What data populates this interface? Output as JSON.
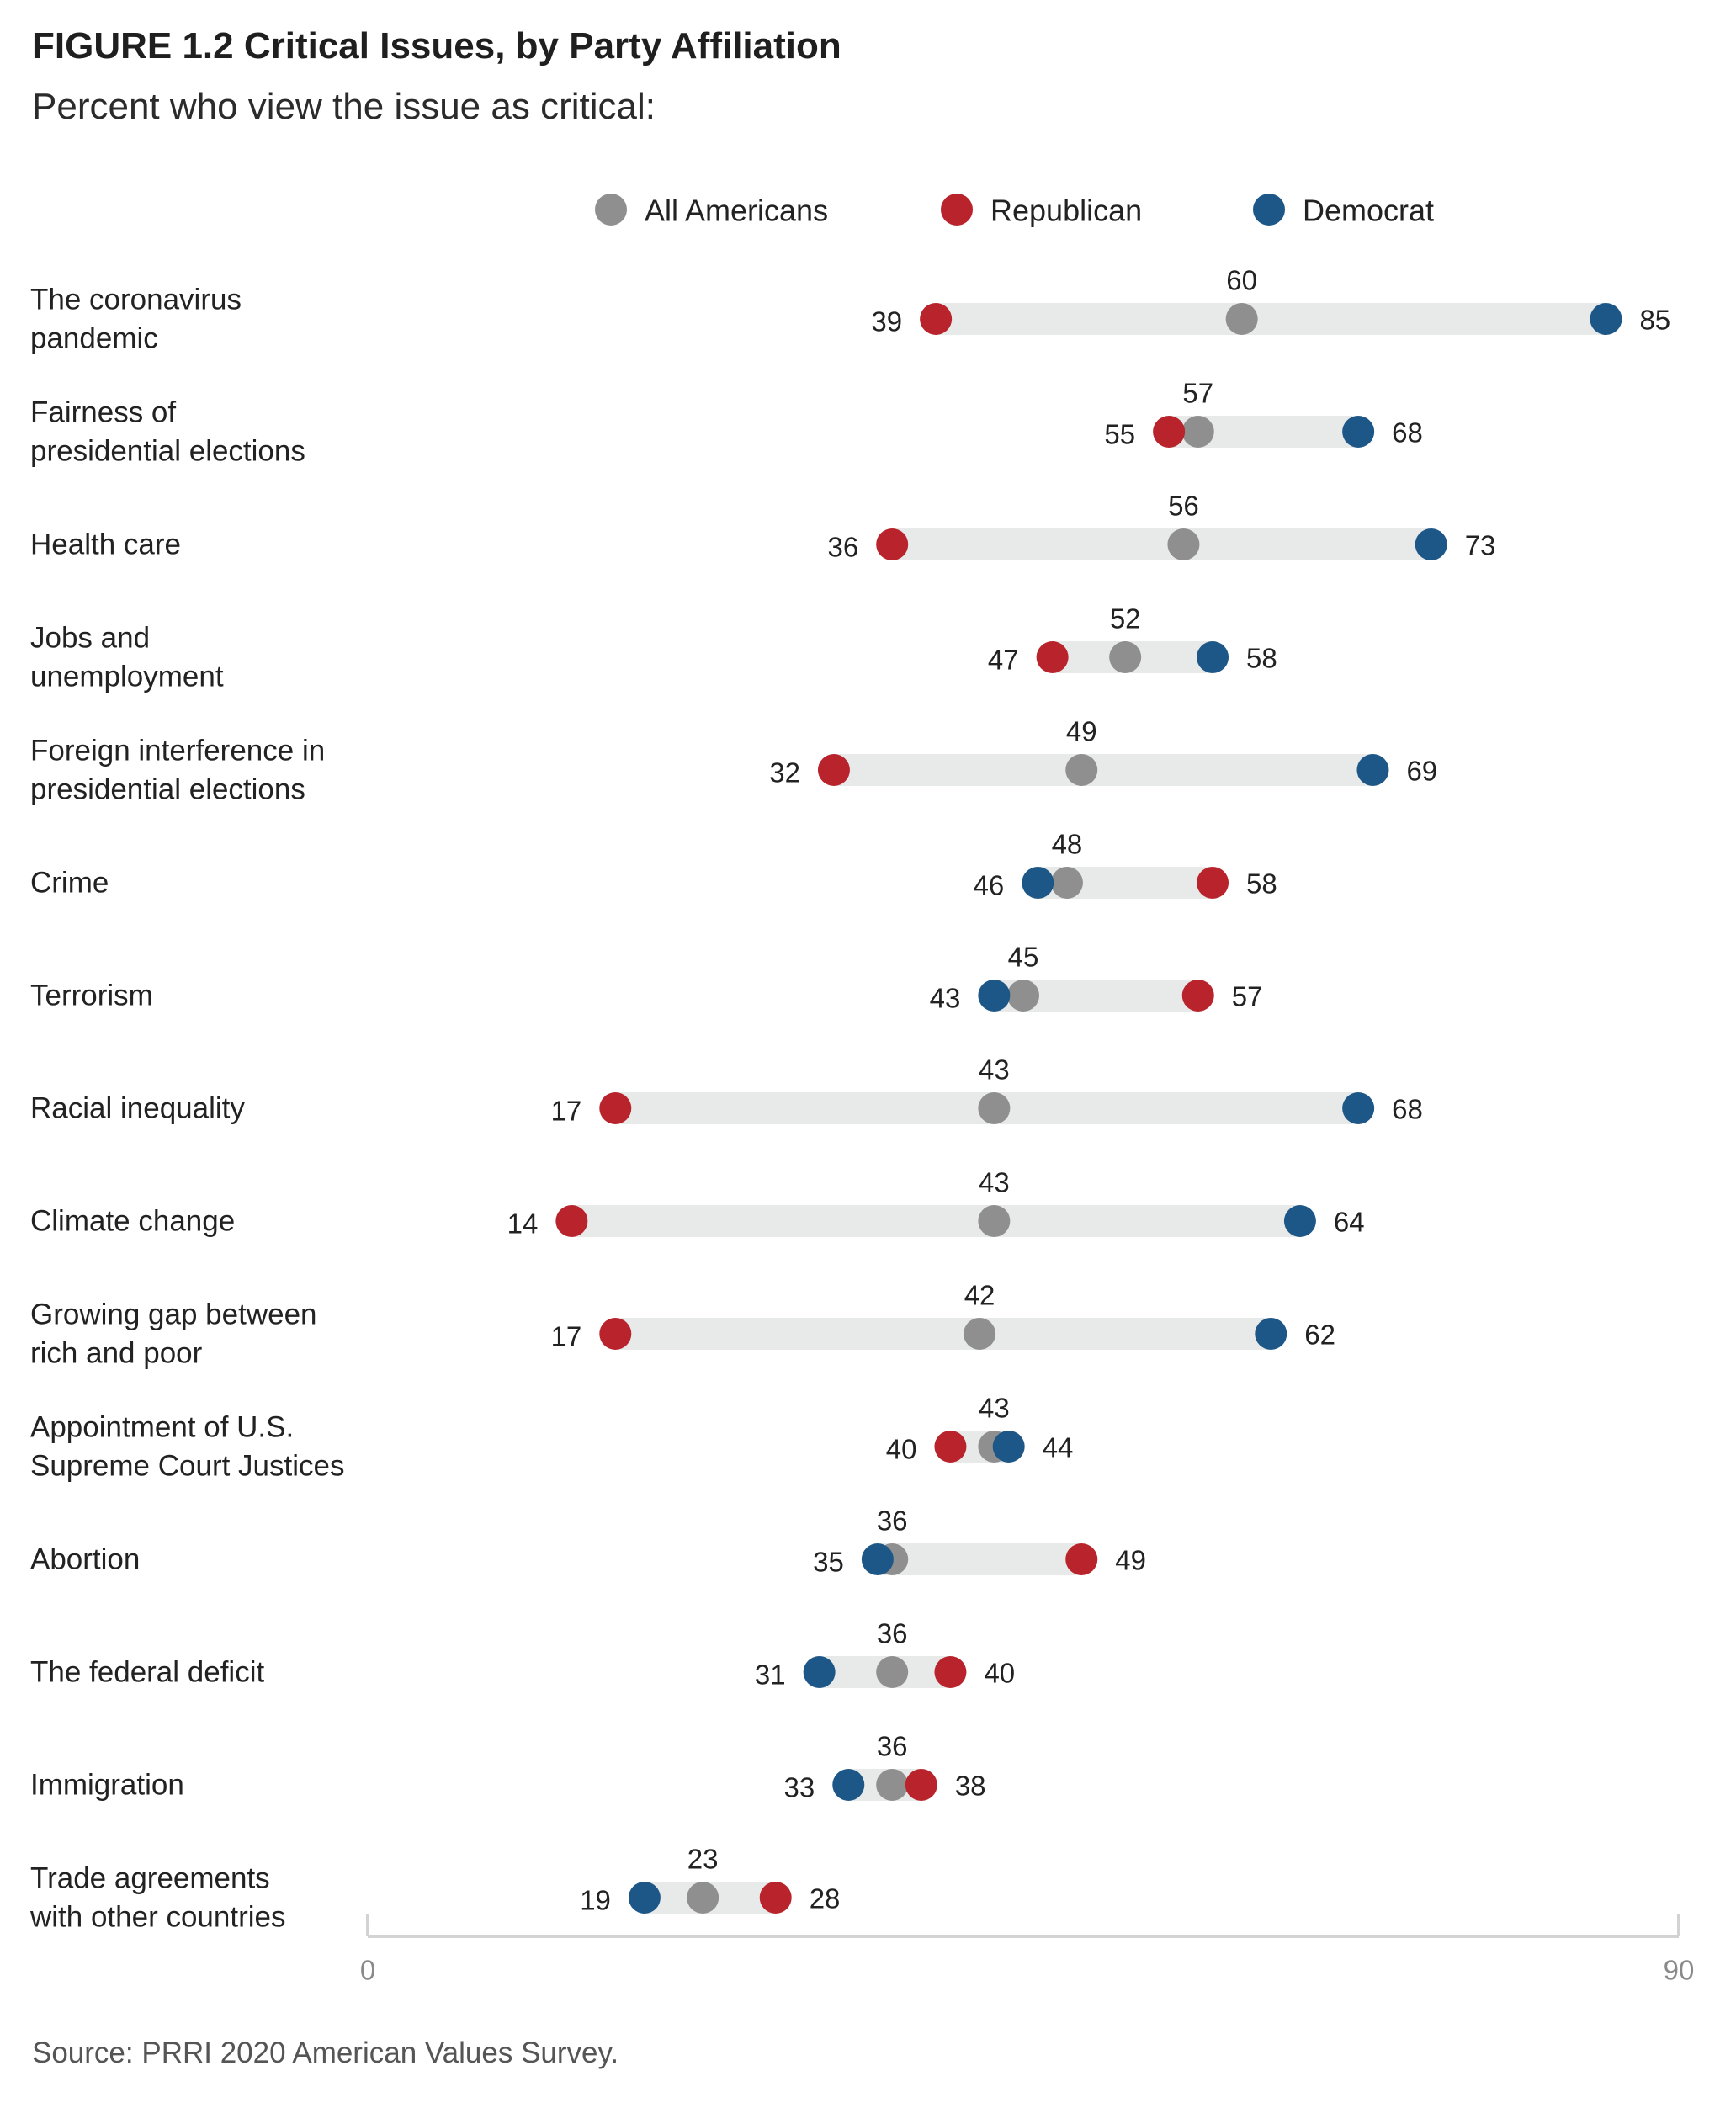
{
  "title": "FIGURE 1.2 Critical Issues, by Party Affiliation",
  "subtitle": "Percent who view the issue as critical:",
  "source": "Source: PRRI 2020 American Values Survey.",
  "colors": {
    "all": "#8f8f8f",
    "republican": "#b8232c",
    "democrat": "#1d5787",
    "bar": "#e8e9e9",
    "axis": "#d3d3d3"
  },
  "chart_data": {
    "type": "dot",
    "xlim": [
      0,
      90
    ],
    "x_ticks": [
      "0",
      "90"
    ],
    "legend": [
      {
        "key": "all",
        "label": "All Americans"
      },
      {
        "key": "republican",
        "label": "Republican"
      },
      {
        "key": "democrat",
        "label": "Democrat"
      }
    ],
    "legend_position": "top",
    "categories": [
      {
        "label": [
          "The coronavirus",
          "pandemic"
        ],
        "all": 60,
        "republican": 39,
        "democrat": 85
      },
      {
        "label": [
          "Fairness of",
          "presidential elections"
        ],
        "all": 57,
        "republican": 55,
        "democrat": 68
      },
      {
        "label": [
          "Health care"
        ],
        "all": 56,
        "republican": 36,
        "democrat": 73
      },
      {
        "label": [
          "Jobs and",
          "unemployment"
        ],
        "all": 52,
        "republican": 47,
        "democrat": 58
      },
      {
        "label": [
          "Foreign interference in",
          "presidential elections"
        ],
        "all": 49,
        "republican": 32,
        "democrat": 69
      },
      {
        "label": [
          "Crime"
        ],
        "all": 48,
        "republican": 58,
        "democrat": 46
      },
      {
        "label": [
          "Terrorism"
        ],
        "all": 45,
        "republican": 57,
        "democrat": 43
      },
      {
        "label": [
          "Racial inequality"
        ],
        "all": 43,
        "republican": 17,
        "democrat": 68
      },
      {
        "label": [
          "Climate change"
        ],
        "all": 43,
        "republican": 14,
        "democrat": 64
      },
      {
        "label": [
          "Growing gap between",
          "rich and poor"
        ],
        "all": 42,
        "republican": 17,
        "democrat": 62
      },
      {
        "label": [
          "Appointment of U.S.",
          "Supreme Court Justices"
        ],
        "all": 43,
        "republican": 40,
        "democrat": 44
      },
      {
        "label": [
          "Abortion"
        ],
        "all": 36,
        "republican": 49,
        "democrat": 35
      },
      {
        "label": [
          "The federal deficit"
        ],
        "all": 36,
        "republican": 40,
        "democrat": 31
      },
      {
        "label": [
          "Immigration"
        ],
        "all": 36,
        "republican": 38,
        "democrat": 33
      },
      {
        "label": [
          "Trade agreements",
          "with other countries"
        ],
        "all": 23,
        "republican": 28,
        "democrat": 19
      }
    ]
  }
}
